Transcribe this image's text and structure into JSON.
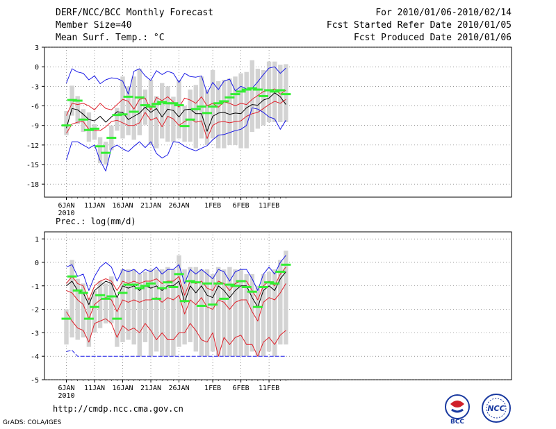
{
  "header": {
    "title": "DERF/NCC/BCC Monthly Forecast",
    "member_size": "Member Size=40",
    "variable": "Mean Surf. Temp.: °C",
    "period": "For 2010/01/06-2010/02/14",
    "started": "Fcst Started Refer Date 2010/01/05",
    "produced": "Fcst Produced Date 2010/01/06"
  },
  "footer": {
    "url": "http://cmdp.ncc.cma.gov.cn",
    "credit": "GrADS: COLA/IGES"
  },
  "logos": {
    "left": "BCC",
    "right": "NCC"
  },
  "colors": {
    "box": "#d3d3d3",
    "mean": "#000000",
    "spread": "#e0202a",
    "extreme": "#1a1ae6",
    "median": "#33ee33",
    "axis": "#000000"
  },
  "chart_data": [
    {
      "type": "box-plot time series",
      "title": "Mean Surf. Temp.: °C",
      "ylabel": "°C",
      "ylim": [
        -20,
        3
      ],
      "yticks": [
        3,
        0,
        -3,
        -6,
        -9,
        -12,
        -15,
        -18
      ],
      "yticklabels": [
        "3",
        "0",
        "-3",
        "-6",
        "-9",
        "-12",
        "-15",
        "-18"
      ],
      "xtick_days": [
        0,
        5,
        10,
        15,
        20,
        26,
        31,
        36
      ],
      "xticklabels": [
        "6JAN",
        "11JAN",
        "16JAN",
        "21JAN",
        "26JAN",
        "1FEB",
        "6FEB",
        "11FEB"
      ],
      "year_label": "2010",
      "days": 40,
      "max": [
        -2.5,
        -0.3,
        -0.8,
        -1.0,
        -2.0,
        -1.4,
        -2.6,
        -2.0,
        -1.7,
        -1.8,
        -2.2,
        -4.2,
        -0.7,
        -0.3,
        -1.4,
        -2.1,
        -0.6,
        -1.2,
        -0.7,
        -1.0,
        -2.4,
        -1.0,
        -1.5,
        -1.6,
        -1.4,
        -4.1,
        -2.4,
        -3.5,
        -2.2,
        -1.9,
        -3.7,
        -3.0,
        -3.4,
        -3.3,
        -2.3,
        -1.2,
        -0.2,
        0.0,
        -1.0,
        -0.2
      ],
      "upper": [
        -7.5,
        -5.6,
        -5.8,
        -5.6,
        -6.0,
        -6.6,
        -5.6,
        -6.4,
        -6.6,
        -5.8,
        -5.0,
        -5.3,
        -6.5,
        -5.0,
        -4.8,
        -6.6,
        -4.7,
        -5.2,
        -4.6,
        -5.4,
        -6.2,
        -4.8,
        -5.1,
        -5.6,
        -4.6,
        -6.0,
        -5.6,
        -6.2,
        -5.4,
        -5.6,
        -6.0,
        -5.6,
        -5.8,
        -5.0,
        -4.4,
        -3.8,
        -3.6,
        -3.4,
        -4.2,
        -3.6
      ],
      "mean": [
        -9.4,
        -6.4,
        -6.6,
        -7.3,
        -8.1,
        -8.3,
        -7.6,
        -8.5,
        -7.7,
        -6.9,
        -7.0,
        -8.1,
        -7.6,
        -7.1,
        -6.2,
        -7.0,
        -6.4,
        -7.7,
        -6.5,
        -6.7,
        -7.7,
        -6.6,
        -6.5,
        -7.2,
        -7.2,
        -9.9,
        -7.6,
        -7.1,
        -7.0,
        -7.3,
        -7.1,
        -7.2,
        -6.3,
        -5.8,
        -5.9,
        -5.1,
        -4.8,
        -4.0,
        -4.6,
        -5.8
      ],
      "lower": [
        -10.2,
        -8.8,
        -8.5,
        -8.4,
        -9.6,
        -9.8,
        -9.8,
        -9.2,
        -8.4,
        -8.2,
        -8.6,
        -9.0,
        -9.0,
        -8.6,
        -7.0,
        -8.2,
        -7.8,
        -9.2,
        -7.6,
        -8.0,
        -9.0,
        -8.4,
        -8.0,
        -8.5,
        -8.3,
        -11.0,
        -9.0,
        -8.5,
        -8.4,
        -8.6,
        -8.4,
        -8.3,
        -7.6,
        -7.2,
        -7.0,
        -6.4,
        -5.8,
        -5.3,
        -5.6,
        -5.0
      ],
      "min": [
        -14.3,
        -11.5,
        -11.5,
        -12.0,
        -12.5,
        -12.0,
        -14.4,
        -16.0,
        -12.5,
        -12.0,
        -12.6,
        -13.0,
        -12.2,
        -11.5,
        -12.4,
        -11.5,
        -13.3,
        -14.0,
        -13.5,
        -11.5,
        -11.6,
        -12.2,
        -12.6,
        -12.9,
        -12.5,
        -12.1,
        -11.2,
        -10.5,
        -10.4,
        -10.1,
        -9.8,
        -9.6,
        -9.0,
        -6.3,
        -6.5,
        -7.0,
        -7.7,
        -8.0,
        -9.6,
        -8.2
      ],
      "median": [
        -9.0,
        -5.1,
        -5.2,
        -8.1,
        -9.7,
        -9.5,
        -12.2,
        -13.2,
        -10.9,
        -7.4,
        -7.3,
        -4.6,
        -6.9,
        -4.7,
        -5.9,
        -6.1,
        -5.7,
        -5.4,
        -5.6,
        -5.6,
        -5.9,
        -9.1,
        -8.1,
        -6.5,
        -6.1,
        -7.1,
        -6.1,
        -5.6,
        -5.3,
        -4.7,
        -4.2,
        -3.8,
        -3.5,
        -3.3,
        -3.5,
        -4.5,
        -3.6,
        -3.8,
        -3.6,
        -4.2
      ],
      "box_top": [
        -6.8,
        -2.9,
        -4.5,
        -6.5,
        -7.0,
        -8.8,
        -10.8,
        -11.5,
        -9.0,
        -6.3,
        -1.5,
        -3.0,
        -1.5,
        -0.3,
        -3.5,
        -2.0,
        -4.5,
        -2.5,
        -3.0,
        -4.6,
        -2.0,
        -6.0,
        -3.5,
        -2.8,
        -1.5,
        -3.5,
        -0.5,
        -2.2,
        -2.0,
        -1.8,
        -1.5,
        -1.0,
        -0.8,
        1.0,
        -0.3,
        -0.5,
        0.8,
        0.8,
        0.3,
        0.4
      ],
      "box_bottom": [
        -10.5,
        -7.5,
        -8.8,
        -10.0,
        -11.5,
        -11.2,
        -14.8,
        -15.0,
        -12.8,
        -9.8,
        -11.0,
        -10.5,
        -11.2,
        -10.5,
        -8.9,
        -12.0,
        -12.5,
        -11.0,
        -11.5,
        -11.5,
        -11.0,
        -11.5,
        -11.5,
        -12.5,
        -11.0,
        -12.0,
        -11.0,
        -12.5,
        -12.5,
        -12.0,
        -12.0,
        -12.5,
        -12.5,
        -10.0,
        -9.5,
        -9.0,
        -8.5,
        -8.5,
        -8.5,
        -8.5
      ]
    },
    {
      "type": "box-plot time series",
      "title": "Prec.: log(mm/d)",
      "ylabel": "log(mm/d)",
      "ylim": [
        -5,
        1.3
      ],
      "yticks": [
        1,
        0,
        -1,
        -2,
        -3,
        -4,
        -5
      ],
      "yticklabels": [
        "1",
        "0",
        "-1",
        "-2",
        "-3",
        "-4",
        "-5"
      ],
      "xtick_days": [
        0,
        5,
        10,
        15,
        20,
        26,
        31,
        36
      ],
      "xticklabels": [
        "6JAN",
        "11JAN",
        "16JAN",
        "21JAN",
        "26JAN",
        "1FEB",
        "6FEB",
        "11FEB"
      ],
      "year_label": "2010",
      "days": 40,
      "max": [
        -0.2,
        -0.1,
        -0.6,
        -0.5,
        -1.2,
        -0.6,
        -0.2,
        0.0,
        -0.2,
        -0.8,
        -0.3,
        -0.4,
        -0.3,
        -0.5,
        -0.3,
        -0.4,
        -0.2,
        -0.5,
        -0.3,
        -0.3,
        -0.1,
        -0.9,
        -0.3,
        -0.5,
        -0.3,
        -0.5,
        -0.7,
        -0.3,
        -0.4,
        -0.8,
        -0.4,
        -0.3,
        -0.3,
        -0.7,
        -1.2,
        -0.5,
        -0.2,
        -0.5,
        0.0,
        0.3
      ],
      "upper": [
        -0.9,
        -0.6,
        -0.9,
        -1.0,
        -1.6,
        -1.0,
        -0.8,
        -0.7,
        -0.8,
        -1.2,
        -0.8,
        -0.9,
        -0.8,
        -0.9,
        -0.8,
        -0.8,
        -0.7,
        -0.9,
        -0.8,
        -0.8,
        -0.6,
        -1.4,
        -0.8,
        -0.9,
        -0.8,
        -1.1,
        -1.2,
        -0.8,
        -0.9,
        -1.2,
        -0.9,
        -0.8,
        -0.8,
        -1.2,
        -1.6,
        -1.0,
        -0.8,
        -1.0,
        -0.5,
        -0.2
      ],
      "mean": [
        -1.0,
        -0.8,
        -1.2,
        -1.3,
        -1.8,
        -1.2,
        -1.0,
        -0.8,
        -0.9,
        -1.5,
        -1.0,
        -1.1,
        -1.0,
        -1.2,
        -1.0,
        -1.1,
        -1.0,
        -1.2,
        -1.0,
        -1.0,
        -0.8,
        -1.7,
        -1.0,
        -1.3,
        -1.0,
        -1.4,
        -1.5,
        -1.0,
        -1.2,
        -1.5,
        -1.2,
        -1.0,
        -1.0,
        -1.5,
        -1.9,
        -1.2,
        -1.0,
        -1.2,
        -0.7,
        -0.4
      ],
      "lower": [
        -1.2,
        -1.3,
        -1.6,
        -1.8,
        -2.4,
        -1.8,
        -1.6,
        -1.5,
        -1.6,
        -2.1,
        -1.6,
        -1.7,
        -1.6,
        -1.7,
        -1.6,
        -1.6,
        -1.5,
        -1.7,
        -1.5,
        -1.6,
        -1.4,
        -2.2,
        -1.6,
        -1.8,
        -1.5,
        -1.9,
        -2.0,
        -1.6,
        -1.7,
        -2.0,
        -1.7,
        -1.6,
        -1.6,
        -2.1,
        -2.5,
        -1.7,
        -1.5,
        -1.6,
        -1.3,
        -0.9
      ],
      "lower2": [
        -2.1,
        -2.5,
        -2.8,
        -2.9,
        -3.4,
        -2.6,
        -2.5,
        -2.4,
        -2.6,
        -3.2,
        -2.7,
        -2.9,
        -2.8,
        -3.0,
        -2.6,
        -2.9,
        -3.3,
        -3.0,
        -3.3,
        -3.3,
        -3.0,
        -3.0,
        -2.6,
        -2.9,
        -3.3,
        -3.4,
        -3.0,
        -4.0,
        -3.2,
        -3.5,
        -3.2,
        -3.1,
        -3.5,
        -3.5,
        -4.0,
        -3.4,
        -3.2,
        -3.5,
        -3.1,
        -2.9
      ],
      "min": [
        -3.8,
        -3.75,
        -4.0,
        -4.0,
        -4.0,
        -4.0,
        -4.0,
        -4.0,
        -4.0,
        -4.0,
        -4.0,
        -4.0,
        -4.0,
        -4.0,
        -4.0,
        -4.0,
        -4.0,
        -4.0,
        -4.0,
        -4.0,
        -4.0,
        -4.0,
        -4.0,
        -4.0,
        -4.0,
        -4.0,
        -4.0,
        -4.0,
        -4.0,
        -4.0,
        -4.0,
        -4.0,
        -4.0,
        -4.0,
        -4.0,
        -4.0,
        -4.0,
        -4.0,
        -4.0,
        -4.0
      ],
      "median": [
        -2.4,
        -0.6,
        -1.2,
        -1.3,
        -2.4,
        -1.9,
        -1.4,
        -1.55,
        -1.45,
        -2.4,
        -1.3,
        -0.95,
        -0.95,
        -1.1,
        -1.0,
        -0.9,
        -1.55,
        -1.1,
        -0.85,
        -1.05,
        -0.5,
        -1.65,
        -0.8,
        -0.85,
        -1.85,
        -0.9,
        -1.8,
        -0.9,
        -1.55,
        -0.95,
        -1.0,
        -0.8,
        -1.05,
        -1.25,
        -1.9,
        -1.05,
        -0.85,
        -0.9,
        -0.4,
        -0.1
      ],
      "box_top": [
        -2.0,
        0.1,
        -0.7,
        -0.9,
        -1.5,
        -1.2,
        -0.8,
        -0.9,
        -0.6,
        -1.5,
        -0.3,
        -0.3,
        -0.3,
        -0.5,
        -0.4,
        -0.3,
        -0.3,
        -0.3,
        -0.2,
        -0.3,
        0.3,
        -0.3,
        -0.2,
        -0.2,
        -0.3,
        -0.3,
        -0.5,
        -0.2,
        -0.3,
        -0.2,
        -0.3,
        -0.3,
        -0.5,
        -0.5,
        -1.0,
        -0.5,
        -0.4,
        -0.3,
        0.1,
        0.5
      ],
      "box_bottom": [
        -3.5,
        -3.2,
        -3.3,
        -3.2,
        -3.6,
        -3.0,
        -2.8,
        -2.6,
        -2.6,
        -3.6,
        -3.4,
        -3.3,
        -3.5,
        -4.0,
        -3.4,
        -4.0,
        -3.8,
        -4.0,
        -4.0,
        -4.0,
        -3.6,
        -3.5,
        -3.4,
        -3.8,
        -4.0,
        -4.0,
        -3.8,
        -4.0,
        -4.0,
        -4.0,
        -4.0,
        -4.0,
        -4.0,
        -3.8,
        -4.0,
        -4.0,
        -3.8,
        -4.0,
        -3.5,
        -3.5
      ]
    }
  ]
}
